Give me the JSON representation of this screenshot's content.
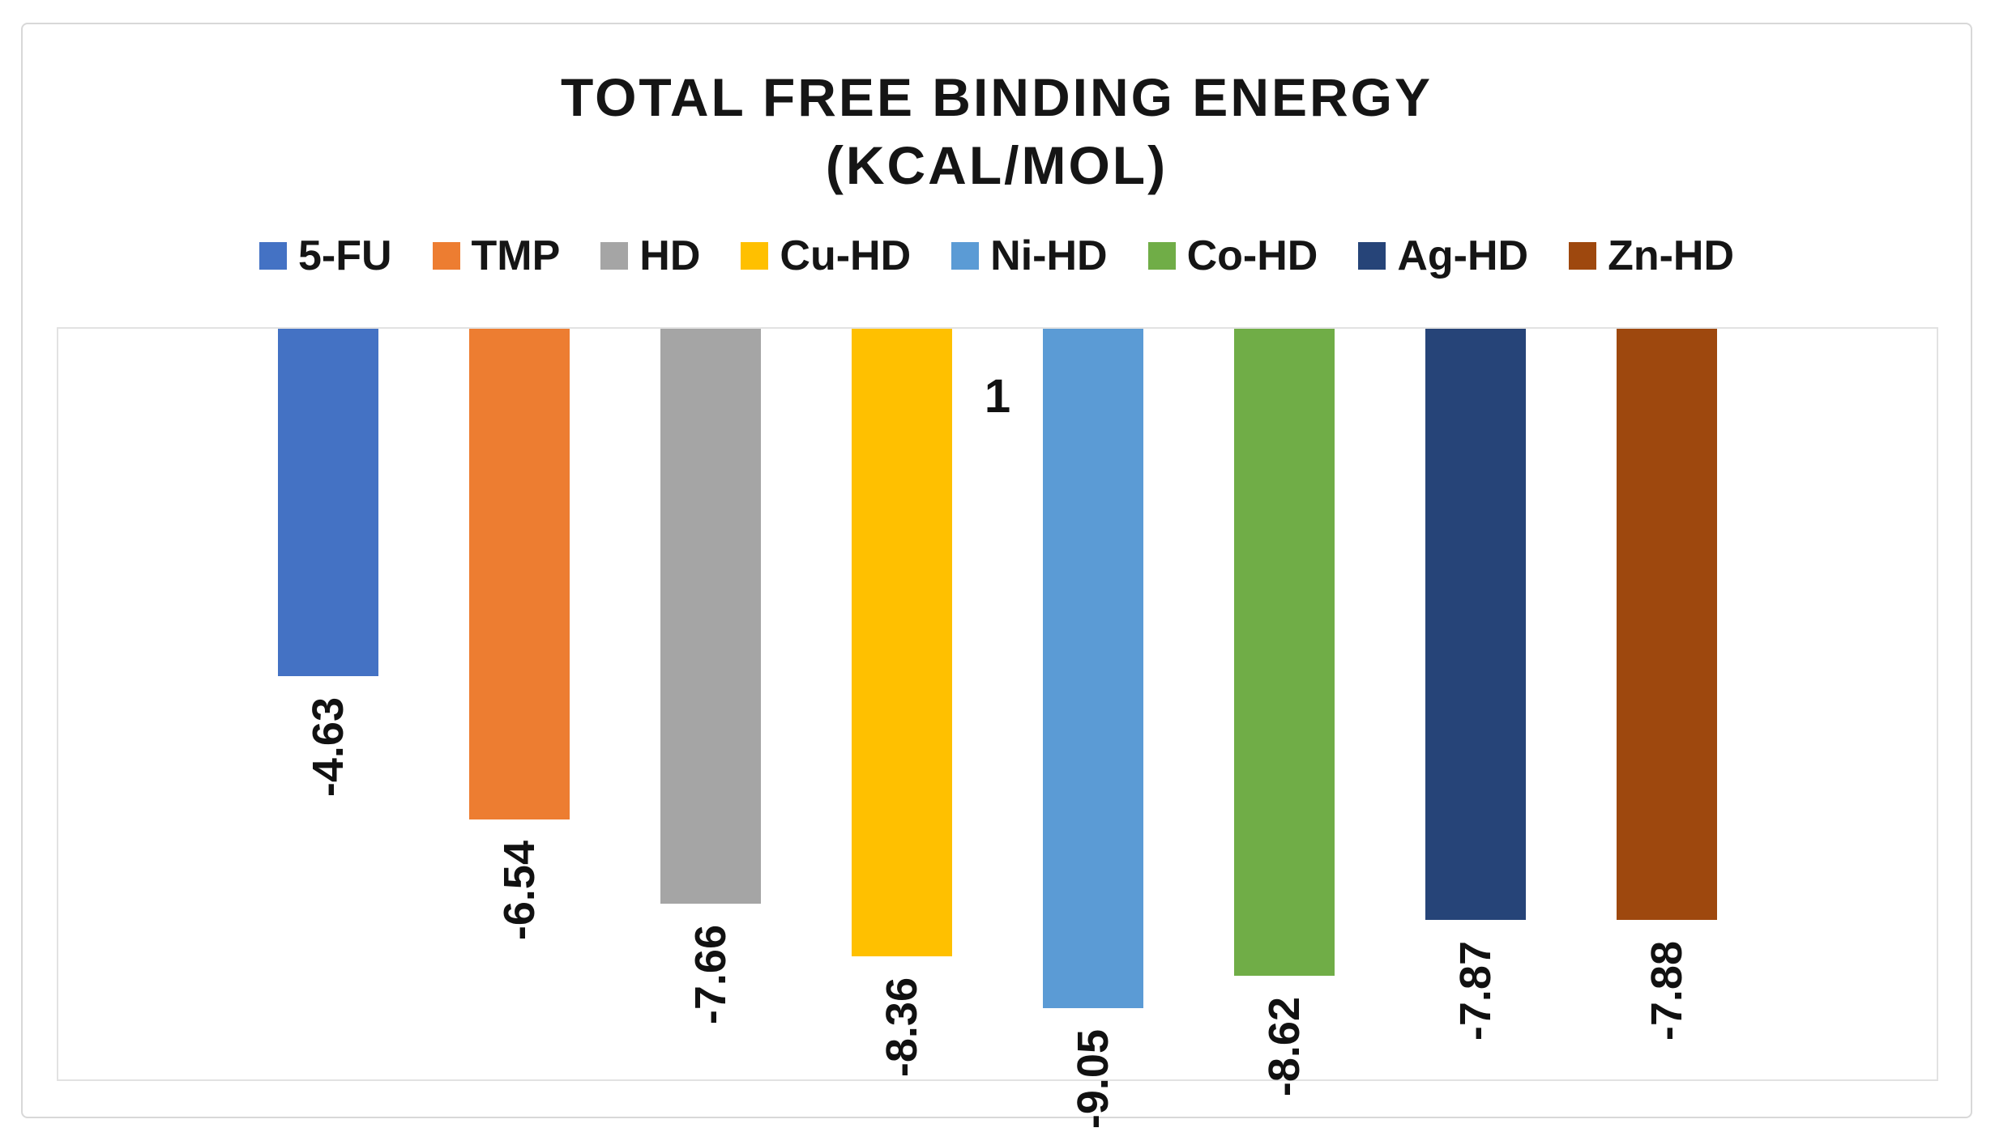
{
  "chart_data": {
    "type": "bar",
    "title": "TOTAL FREE BINDING ENERGY (KCAL/MOL)",
    "title_lines": [
      "TOTAL FREE BINDING ENERGY",
      "(KCAL/MOL)"
    ],
    "categories": [
      "1"
    ],
    "series": [
      {
        "name": "5-FU",
        "values": [
          -4.63
        ],
        "label": "-4.63",
        "color": "#4472C4"
      },
      {
        "name": "TMP",
        "values": [
          -6.54
        ],
        "label": "-6.54",
        "color": "#ED7D31"
      },
      {
        "name": "HD",
        "values": [
          -7.66
        ],
        "label": "-7.66",
        "color": "#A5A5A5"
      },
      {
        "name": "Cu-HD",
        "values": [
          -8.36
        ],
        "label": "-8.36",
        "color": "#FFC000"
      },
      {
        "name": "Ni-HD",
        "values": [
          -9.05
        ],
        "label": "-9.05",
        "color": "#5B9BD5"
      },
      {
        "name": "Co-HD",
        "values": [
          -8.62
        ],
        "label": "-8.62",
        "color": "#70AD47"
      },
      {
        "name": "Ag-HD",
        "values": [
          -7.87
        ],
        "label": "-7.87",
        "color": "#264478"
      },
      {
        "name": "Zn-HD",
        "values": [
          -7.88
        ],
        "label": "-7.88",
        "color": "#9E480E"
      }
    ],
    "xlabel": "",
    "ylabel": "",
    "ylim": [
      -10,
      0
    ],
    "grid": false,
    "legend_position": "top",
    "value_label_rotation": -90
  },
  "colors": {
    "chart_border": "#D8D8D8",
    "plot_border": "#E2E2E2",
    "text": "#151515",
    "background": "#FFFFFF"
  }
}
